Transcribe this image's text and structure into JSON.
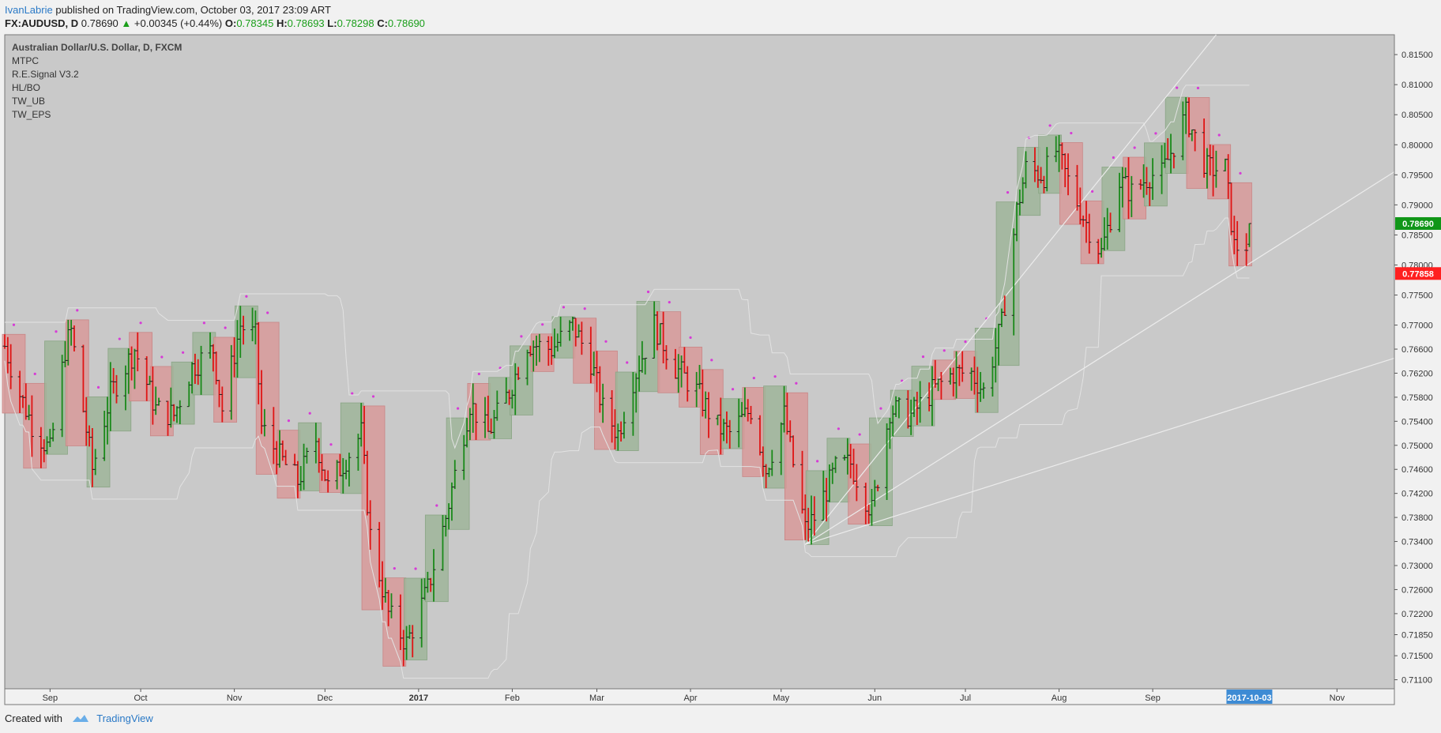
{
  "header": {
    "author": "IvanLabrie",
    "published_text": "published on TradingView.com, October 03, 2017 23:09 ART",
    "symbol": "FX:AUDUSD, D",
    "last": "0.78690",
    "change_arrow": "▲",
    "change": "+0.00345 (+0.44%)",
    "o_label": "O:",
    "o_value": "0.78345",
    "h_label": "H:",
    "h_value": "0.78693",
    "l_label": "L:",
    "l_value": "0.78298",
    "c_label": "C:",
    "c_value": "0.78690"
  },
  "legend": {
    "title": "Australian Dollar/U.S. Dollar, D, FXCM",
    "indicators": [
      "MTPC",
      "R.E.Signal V3.2",
      "HL/BO",
      "TW_UB",
      "TW_EPS"
    ]
  },
  "footer": {
    "created_with": "Created with",
    "brand": "TradingView",
    "logo_icon": "tradingview-logo-icon"
  },
  "colors": {
    "background": "#c9c9c9",
    "up": "#1a8a1a",
    "down": "#e01414",
    "up_box": "#9fb59a",
    "down_box": "#d89a9a",
    "last_price": "#109618",
    "marker_price": "#ff2020",
    "date_highlight": "#3d8bd4"
  },
  "chart_data": {
    "type": "candlestick",
    "title": "Australian Dollar/U.S. Dollar, D, FXCM",
    "x_range": [
      "2016-08-17",
      "2017-11-20"
    ],
    "ylim": [
      0.7095,
      0.8183
    ],
    "y_ticks": [
      "0.81500",
      "0.81000",
      "0.80500",
      "0.80000",
      "0.79500",
      "0.79000",
      "0.78500",
      "0.78000",
      "0.77500",
      "0.77000",
      "0.76600",
      "0.76200",
      "0.75800",
      "0.75400",
      "0.75000",
      "0.74600",
      "0.74200",
      "0.73800",
      "0.73400",
      "0.73000",
      "0.72600",
      "0.72200",
      "0.71850",
      "0.71500",
      "0.71100"
    ],
    "x_ticks": [
      "Sep",
      "Oct",
      "Nov",
      "Dec",
      "2017",
      "Feb",
      "Mar",
      "Apr",
      "May",
      "Jun",
      "Jul",
      "Aug",
      "Sep",
      "2017-10-03",
      "Nov"
    ],
    "highlighted_date": "2017-10-03",
    "last_price": "0.78690",
    "marker_price": "0.77858",
    "anchors": [
      [
        "2016-08-17",
        0.7665
      ],
      [
        "2016-08-22",
        0.7585
      ],
      [
        "2016-08-26",
        0.7535
      ],
      [
        "2016-09-01",
        0.749
      ],
      [
        "2016-09-06",
        0.766
      ],
      [
        "2016-09-08",
        0.769
      ],
      [
        "2016-09-15",
        0.746
      ],
      [
        "2016-09-21",
        0.7585
      ],
      [
        "2016-09-29",
        0.766
      ],
      [
        "2016-10-06",
        0.756
      ],
      [
        "2016-10-12",
        0.755
      ],
      [
        "2016-10-18",
        0.763
      ],
      [
        "2016-10-25",
        0.766
      ],
      [
        "2016-10-28",
        0.756
      ],
      [
        "2016-11-03",
        0.77
      ],
      [
        "2016-11-08",
        0.768
      ],
      [
        "2016-11-10",
        0.753
      ],
      [
        "2016-11-16",
        0.748
      ],
      [
        "2016-11-22",
        0.744
      ],
      [
        "2016-11-28",
        0.751
      ],
      [
        "2016-12-02",
        0.743
      ],
      [
        "2016-12-07",
        0.747
      ],
      [
        "2016-12-13",
        0.752
      ],
      [
        "2016-12-16",
        0.735
      ],
      [
        "2016-12-22",
        0.722
      ],
      [
        "2016-12-28",
        0.717
      ],
      [
        "2017-01-04",
        0.726
      ],
      [
        "2017-01-10",
        0.738
      ],
      [
        "2017-01-18",
        0.757
      ],
      [
        "2017-01-24",
        0.752
      ],
      [
        "2017-01-31",
        0.759
      ],
      [
        "2017-02-06",
        0.767
      ],
      [
        "2017-02-14",
        0.766
      ],
      [
        "2017-02-21",
        0.77
      ],
      [
        "2017-02-27",
        0.764
      ],
      [
        "2017-03-03",
        0.756
      ],
      [
        "2017-03-08",
        0.752
      ],
      [
        "2017-03-13",
        0.761
      ],
      [
        "2017-03-20",
        0.77
      ],
      [
        "2017-03-27",
        0.763
      ],
      [
        "2017-04-03",
        0.759
      ],
      [
        "2017-04-10",
        0.753
      ],
      [
        "2017-04-14",
        0.752
      ],
      [
        "2017-04-21",
        0.756
      ],
      [
        "2017-04-26",
        0.746
      ],
      [
        "2017-05-02",
        0.755
      ],
      [
        "2017-05-09",
        0.736
      ],
      [
        "2017-05-12",
        0.738
      ],
      [
        "2017-05-19",
        0.746
      ],
      [
        "2017-05-24",
        0.747
      ],
      [
        "2017-05-31",
        0.739
      ],
      [
        "2017-06-06",
        0.756
      ],
      [
        "2017-06-13",
        0.755
      ],
      [
        "2017-06-20",
        0.759
      ],
      [
        "2017-06-27",
        0.762
      ],
      [
        "2017-07-03",
        0.762
      ],
      [
        "2017-07-07",
        0.759
      ],
      [
        "2017-07-13",
        0.77
      ],
      [
        "2017-07-18",
        0.789
      ],
      [
        "2017-07-21",
        0.796
      ],
      [
        "2017-07-27",
        0.795
      ],
      [
        "2017-07-31",
        0.799
      ],
      [
        "2017-08-04",
        0.794
      ],
      [
        "2017-08-10",
        0.787
      ],
      [
        "2017-08-15",
        0.782
      ],
      [
        "2017-08-21",
        0.794
      ],
      [
        "2017-08-25",
        0.792
      ],
      [
        "2017-08-31",
        0.795
      ],
      [
        "2017-09-04",
        0.795
      ],
      [
        "2017-09-12",
        0.805
      ],
      [
        "2017-09-19",
        0.796
      ],
      [
        "2017-09-25",
        0.796
      ],
      [
        "2017-09-28",
        0.783
      ],
      [
        "2017-10-02",
        0.7835
      ],
      [
        "2017-10-03",
        0.7869
      ]
    ],
    "indicators": [
      "MTPC",
      "R.E.Signal V3.2",
      "HL/BO",
      "TW_UB",
      "TW_EPS"
    ]
  }
}
